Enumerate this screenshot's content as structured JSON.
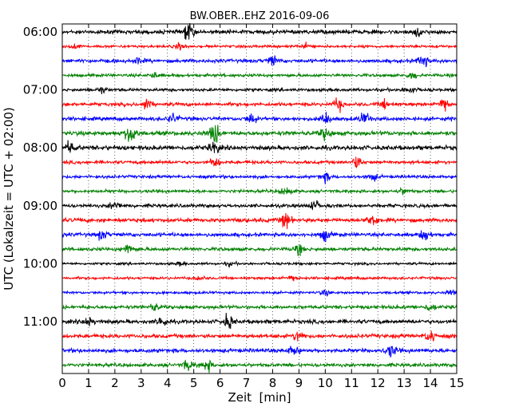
{
  "chart_data": {
    "type": "line",
    "title": "BW.OBER..EHZ 2016-09-06",
    "xlabel": "Zeit  [min]",
    "ylabel": "UTC (Lokalzeit = UTC + 02:00)",
    "xlim": [
      0,
      15
    ],
    "x_ticks": [
      "0",
      "1",
      "2",
      "3",
      "4",
      "5",
      "6",
      "7",
      "8",
      "9",
      "10",
      "11",
      "12",
      "13",
      "14",
      "15"
    ],
    "y_tick_labels": [
      "06:00",
      "07:00",
      "08:00",
      "09:00",
      "10:00",
      "11:00"
    ],
    "grid": true,
    "trace_interval_min": 15,
    "trace_colors": [
      "#000000",
      "#ff0000",
      "#0000ff",
      "#008000"
    ],
    "traces": [
      {
        "start": "06:00",
        "color": "#000000",
        "amp": 0.9,
        "events": [
          [
            4.8,
            1.7
          ],
          [
            13.5,
            0.8
          ]
        ]
      },
      {
        "start": "06:15",
        "color": "#ff0000",
        "amp": 0.6,
        "events": [
          [
            0.5,
            0.8
          ],
          [
            4.5,
            1.0
          ],
          [
            9.3,
            0.9
          ]
        ]
      },
      {
        "start": "06:30",
        "color": "#0000ff",
        "amp": 0.8,
        "events": [
          [
            8.0,
            1.2
          ],
          [
            13.7,
            1.5
          ],
          [
            2.9,
            0.7
          ]
        ]
      },
      {
        "start": "06:45",
        "color": "#008000",
        "amp": 0.7,
        "events": [
          [
            3.5,
            0.7
          ],
          [
            13.3,
            0.9
          ]
        ]
      },
      {
        "start": "07:00",
        "color": "#000000",
        "amp": 0.7,
        "events": [
          [
            1.5,
            0.8
          ],
          [
            13.2,
            0.9
          ]
        ]
      },
      {
        "start": "07:15",
        "color": "#ff0000",
        "amp": 0.8,
        "events": [
          [
            3.2,
            1.3
          ],
          [
            10.5,
            1.3
          ],
          [
            12.3,
            1.1
          ],
          [
            14.5,
            1.6
          ]
        ]
      },
      {
        "start": "07:30",
        "color": "#0000ff",
        "amp": 0.85,
        "events": [
          [
            4.2,
            1.0
          ],
          [
            7.2,
            1.2
          ],
          [
            10.0,
            1.3
          ],
          [
            11.5,
            1.3
          ]
        ]
      },
      {
        "start": "07:45",
        "color": "#008000",
        "amp": 1.0,
        "events": [
          [
            2.6,
            2.2
          ],
          [
            5.8,
            2.0
          ],
          [
            10.0,
            1.0
          ]
        ]
      },
      {
        "start": "08:00",
        "color": "#000000",
        "amp": 1.0,
        "events": [
          [
            0.3,
            1.0
          ],
          [
            5.8,
            1.0
          ]
        ]
      },
      {
        "start": "08:15",
        "color": "#ff0000",
        "amp": 0.75,
        "events": [
          [
            5.8,
            1.1
          ],
          [
            11.2,
            1.5
          ]
        ]
      },
      {
        "start": "08:30",
        "color": "#0000ff",
        "amp": 0.7,
        "events": [
          [
            10.0,
            1.2
          ],
          [
            11.8,
            1.0
          ]
        ]
      },
      {
        "start": "08:45",
        "color": "#008000",
        "amp": 0.7,
        "events": [
          [
            8.5,
            1.3
          ],
          [
            13.0,
            0.8
          ]
        ]
      },
      {
        "start": "09:00",
        "color": "#000000",
        "amp": 0.8,
        "events": [
          [
            2.0,
            0.9
          ],
          [
            9.6,
            1.0
          ]
        ]
      },
      {
        "start": "09:15",
        "color": "#ff0000",
        "amp": 0.9,
        "events": [
          [
            8.5,
            1.6
          ],
          [
            11.8,
            1.3
          ]
        ]
      },
      {
        "start": "09:30",
        "color": "#0000ff",
        "amp": 0.85,
        "events": [
          [
            1.5,
            1.0
          ],
          [
            10.0,
            1.2
          ],
          [
            13.8,
            1.2
          ]
        ]
      },
      {
        "start": "09:45",
        "color": "#008000",
        "amp": 0.8,
        "events": [
          [
            2.5,
            1.2
          ],
          [
            9.0,
            1.0
          ]
        ]
      },
      {
        "start": "10:00",
        "color": "#000000",
        "amp": 0.55,
        "events": [
          [
            4.5,
            0.6
          ],
          [
            6.4,
            0.7
          ]
        ]
      },
      {
        "start": "10:15",
        "color": "#ff0000",
        "amp": 0.6,
        "events": [
          [
            5.2,
            0.7
          ],
          [
            8.7,
            0.8
          ]
        ]
      },
      {
        "start": "10:30",
        "color": "#0000ff",
        "amp": 0.6,
        "events": [
          [
            10.0,
            0.9
          ],
          [
            14.8,
            0.7
          ]
        ]
      },
      {
        "start": "10:45",
        "color": "#008000",
        "amp": 0.8,
        "events": [
          [
            3.5,
            0.8
          ],
          [
            14.0,
            0.9
          ]
        ]
      },
      {
        "start": "11:00",
        "color": "#000000",
        "amp": 0.9,
        "events": [
          [
            6.3,
            1.6
          ],
          [
            3.8,
            1.0
          ],
          [
            1.0,
            0.9
          ]
        ]
      },
      {
        "start": "11:15",
        "color": "#ff0000",
        "amp": 0.9,
        "events": [
          [
            9.0,
            1.2
          ],
          [
            14.0,
            1.3
          ]
        ]
      },
      {
        "start": "11:30",
        "color": "#0000ff",
        "amp": 0.9,
        "events": [
          [
            12.5,
            1.2
          ],
          [
            8.8,
            1.0
          ]
        ]
      },
      {
        "start": "11:45",
        "color": "#008000",
        "amp": 0.8,
        "events": [
          [
            4.8,
            1.2
          ],
          [
            5.5,
            1.3
          ]
        ]
      }
    ]
  }
}
